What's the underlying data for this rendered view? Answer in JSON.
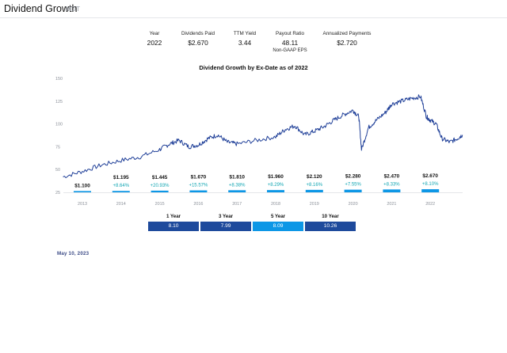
{
  "header": {
    "title": "Dividend Growth",
    "ticker": "MDT"
  },
  "stats": [
    {
      "label": "Year",
      "value": "2022"
    },
    {
      "label": "Dividends Paid",
      "value": "$2.670"
    },
    {
      "label": "TTM Yield",
      "value": "3.44"
    },
    {
      "label": "Payout Ratio",
      "value": "48.11",
      "note": "Non-GAAP EPS"
    },
    {
      "label": "Annualized Payments",
      "value": "$2.720"
    }
  ],
  "chart_title": "Dividend Growth by Ex-Date as of 2022",
  "chart_data": {
    "type": "bar",
    "title": "Dividend Growth by Ex-Date as of 2022",
    "categories": [
      "2013",
      "2014",
      "2015",
      "2016",
      "2017",
      "2018",
      "2019",
      "2020",
      "2021",
      "2022"
    ],
    "series": [
      {
        "values": [
          1.1,
          1.195,
          1.445,
          1.67,
          1.81,
          1.96,
          2.12,
          2.28,
          2.47,
          2.67
        ],
        "labels": [
          "$1.100",
          "$1.195",
          "$1.445",
          "$1.670",
          "$1.810",
          "$1.960",
          "$2.120",
          "$2.280",
          "$2.470",
          "$2.670"
        ],
        "growth": [
          "",
          "+8.64%",
          "+20.93%",
          "+15.57%",
          "+8.38%",
          "+8.29%",
          "+8.16%",
          "+7.55%",
          "+8.33%",
          "+8.10%"
        ]
      }
    ],
    "bar_scale": [
      0,
      150
    ],
    "price_line": {
      "x": [
        2012.5,
        2013.0,
        2013.5,
        2014.0,
        2014.5,
        2015.0,
        2015.25,
        2015.5,
        2015.75,
        2016.0,
        2016.25,
        2016.5,
        2016.75,
        2017.0,
        2017.5,
        2018.0,
        2018.25,
        2018.5,
        2018.75,
        2019.0,
        2019.25,
        2019.5,
        2019.75,
        2020.0,
        2020.15,
        2020.22,
        2020.4,
        2020.6,
        2020.85,
        2021.0,
        2021.25,
        2021.5,
        2021.75,
        2021.9,
        2022.0,
        2022.15,
        2022.3,
        2022.5,
        2022.7,
        2022.83
      ],
      "y": [
        42,
        48,
        55,
        60,
        64,
        72,
        78,
        82,
        75,
        77,
        84,
        88,
        80,
        78,
        82,
        86,
        94,
        98,
        88,
        92,
        97,
        104,
        110,
        115,
        108,
        72,
        96,
        104,
        113,
        122,
        125,
        128,
        130,
        108,
        104,
        100,
        84,
        80,
        84,
        88
      ]
    },
    "yticks": [
      25,
      50,
      75,
      100,
      125,
      150
    ],
    "ylim": [
      25,
      150
    ],
    "grid": false,
    "colors": {
      "bar": "#0d97e6",
      "price": "#1f3f98",
      "growth": "#12a6b3",
      "axis": "#c9cdd3"
    }
  },
  "growth_table": {
    "headers": [
      "1 Year",
      "3 Year",
      "5 Year",
      "10 Year"
    ],
    "values": [
      "8.10",
      "7.99",
      "8.09",
      "10.26"
    ],
    "colors": [
      "#1e4a9c",
      "#1e4a9c",
      "#0d97e6",
      "#1e4a9c"
    ]
  },
  "date": "May 10, 2023"
}
